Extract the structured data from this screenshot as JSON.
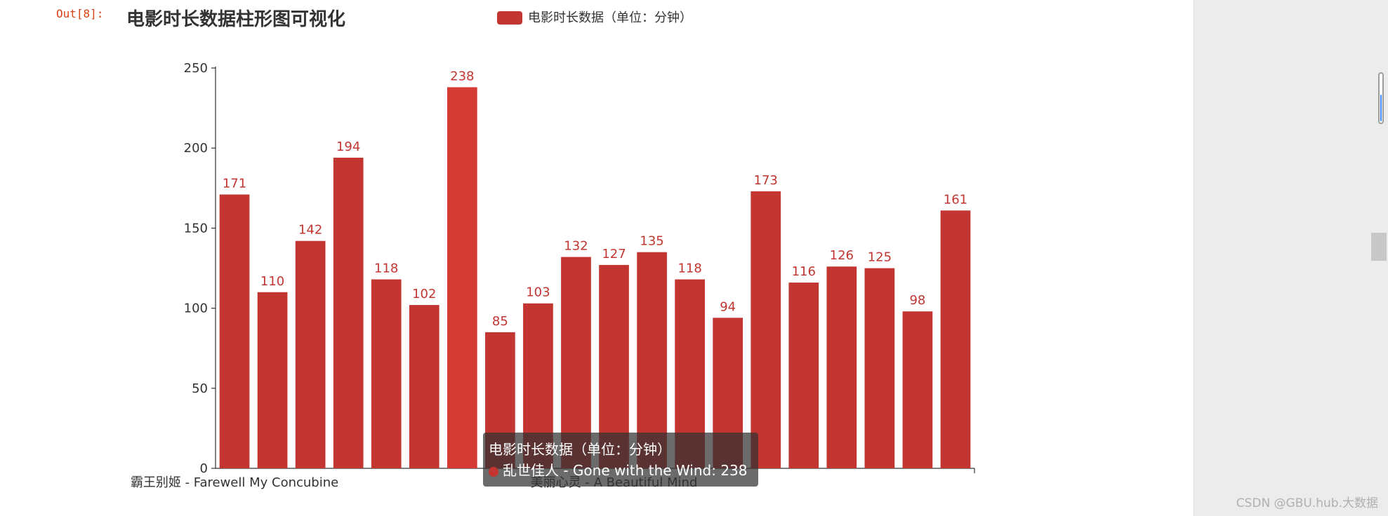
{
  "notebook": {
    "out_prompt": "Out[8]:"
  },
  "watermark": "CSDN @GBU.hub.大数据",
  "chart_data": {
    "type": "bar",
    "title": "电影时长数据柱形图可视化",
    "legend": "电影时长数据（单位：分钟）",
    "series_color": "#c23531",
    "highlight_color": "#d63a35",
    "ylim": [
      0,
      250
    ],
    "yticks": [
      0,
      50,
      100,
      150,
      200,
      250
    ],
    "values": [
      171,
      110,
      142,
      194,
      118,
      102,
      238,
      85,
      103,
      132,
      127,
      135,
      118,
      94,
      173,
      116,
      126,
      125,
      98,
      161
    ],
    "highlight_index": 6,
    "visible_category_labels": [
      {
        "index": 0,
        "label": "霸王别姬 - Farewell My Concubine"
      },
      {
        "index": 10,
        "label": "美丽心灵 - A Beautiful Mind"
      }
    ],
    "tooltip": {
      "title": "电影时长数据（单位：分钟）",
      "text": "乱世佳人 - Gone with the Wind: 238"
    }
  }
}
